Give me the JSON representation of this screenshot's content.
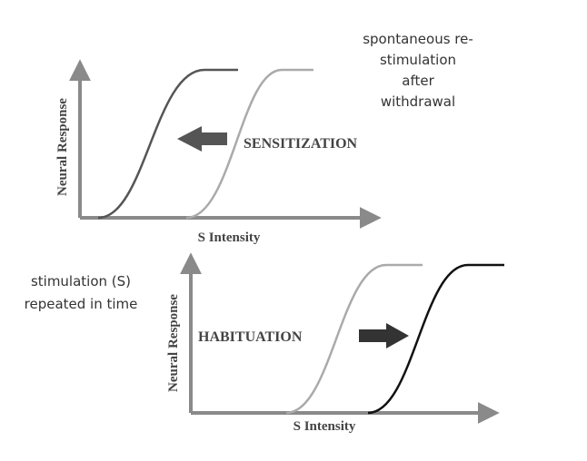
{
  "top_panel": {
    "note_lines": [
      "spontaneous re-",
      "stimulation",
      "after",
      "withdrawal"
    ],
    "y_label": "Neural Response",
    "x_label": "S Intensity",
    "label": "SENSITIZATION"
  },
  "bottom_panel": {
    "note_lines": [
      "stimulation (S)",
      "repeated in time"
    ],
    "y_label": "Neural Response",
    "x_label": "S Intensity",
    "label": "HABITUATION"
  }
}
